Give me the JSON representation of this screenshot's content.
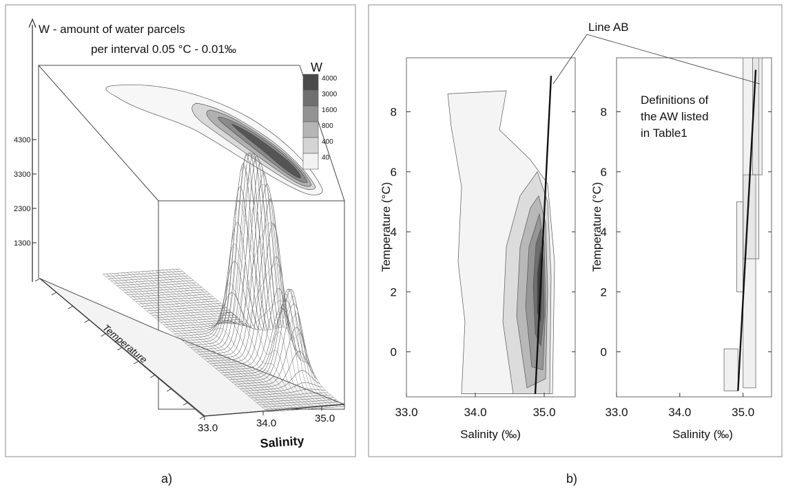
{
  "panel_labels": {
    "a": "a)",
    "b": "b)"
  },
  "chart_data": [
    {
      "type": "surface3d",
      "title_line1": "W - amount of water parcels",
      "title_line2": "per interval 0.05 °C - 0.01‰",
      "legend_title": "W",
      "legend_levels": [
        "4000",
        "3000",
        "1600",
        "800",
        "400",
        "40"
      ],
      "legend_colors": [
        "#4a4a4a",
        "#707070",
        "#939393",
        "#b5b5b5",
        "#d4d4d4",
        "#f2f2f2"
      ],
      "z_ticks": [
        "4300",
        "3300",
        "2300",
        "1300"
      ],
      "x_label": "Salinity",
      "x_ticks": [
        "33.0",
        "34.0",
        "35.0"
      ],
      "y_label": "Temperature",
      "peaks": [
        {
          "t": 4.0,
          "s": 34.85,
          "w": 3000
        },
        {
          "t": 3.2,
          "s": 34.9,
          "w": 2950
        },
        {
          "t": 2.4,
          "s": 34.95,
          "w": 2600
        },
        {
          "t": 1.0,
          "s": 34.92,
          "w": 1800
        }
      ]
    },
    {
      "type": "contour",
      "xlabel": "Salinity (‰)",
      "ylabel": "Temperature (°C)",
      "x_ticks": [
        33.0,
        34.0,
        35.0
      ],
      "y_ticks": [
        0,
        2,
        4,
        6,
        8
      ],
      "xlim": [
        33.0,
        35.45
      ],
      "ylim": [
        -1.5,
        9.8
      ],
      "line_ab": {
        "from": [
          34.87,
          -1.4
        ],
        "to": [
          35.1,
          9.2
        ]
      },
      "levels": [
        40,
        400,
        800,
        1600,
        3000,
        4000
      ]
    },
    {
      "type": "boxes",
      "xlabel": "Salinity (‰)",
      "ylabel": "Temperature (°C)",
      "x_ticks": [
        33.0,
        34.0,
        35.0
      ],
      "y_ticks": [
        0,
        2,
        4,
        6,
        8
      ],
      "xlim": [
        33.0,
        35.45
      ],
      "ylim": [
        -1.5,
        9.8
      ],
      "annotation": [
        "Definitions of",
        "the AW listed",
        "in Table1"
      ],
      "line_ab": {
        "from": [
          34.92,
          -1.3
        ],
        "to": [
          35.2,
          9.4
        ]
      },
      "boxes": [
        {
          "s0": 34.7,
          "s1": 34.92,
          "t0": -1.3,
          "t1": 0.1
        },
        {
          "s0": 34.9,
          "s1": 35.0,
          "t0": 2.0,
          "t1": 5.0
        },
        {
          "s0": 35.0,
          "s1": 35.2,
          "t0": -1.2,
          "t1": 5.9
        },
        {
          "s0": 35.0,
          "s1": 35.25,
          "t0": 3.1,
          "t1": 9.8
        },
        {
          "s0": 35.15,
          "s1": 35.3,
          "t0": 5.9,
          "t1": 9.8
        }
      ]
    }
  ],
  "callout_label": "Line AB"
}
